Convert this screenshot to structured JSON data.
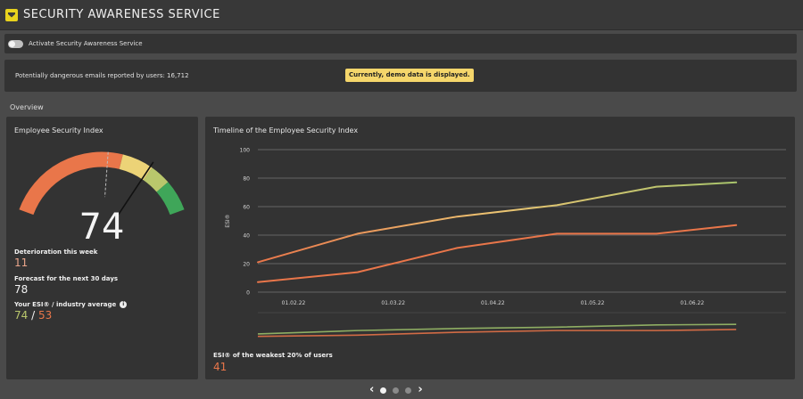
{
  "app": {
    "title": "SECURITY AWARENESS SERVICE",
    "logo_icon": "shield-icon"
  },
  "activate": {
    "label": "Activate Security Awareness Service",
    "enabled": false
  },
  "info": {
    "reported_text": "Potentially dangerous emails reported by users: 16,712",
    "demo_badge": "Currently, demo data is displayed."
  },
  "overview": {
    "label": "Overview"
  },
  "esi_panel": {
    "title": "Employee Security Index",
    "gauge_value": "74",
    "gauge_min": 0,
    "gauge_max": 100,
    "gauge_needle_value": 74,
    "gauge_reference_value": 53,
    "gauge_segments": [
      {
        "from": 0,
        "to": 60,
        "color": "#e9764a"
      },
      {
        "from": 60,
        "to": 75,
        "color": "#ecd377"
      },
      {
        "from": 75,
        "to": 85,
        "color": "#b9c76c"
      },
      {
        "from": 85,
        "to": 100,
        "color": "#3fa659"
      }
    ],
    "deterioration_label": "Deterioration this week",
    "deterioration_value": "11",
    "forecast_label": "Forecast for the next 30 days",
    "forecast_value": "78",
    "average_label": "Your ESI® / industry average",
    "your_esi": "74",
    "separator": "/",
    "industry_avg": "53",
    "colors": {
      "your_esi": "#b9c76c",
      "industry_avg": "#e9764a",
      "deterioration": "#e9a48a"
    }
  },
  "timeline_panel": {
    "title": "Timeline of the Employee Security Index",
    "bottom_label": "ESI® of the weakest 20% of users",
    "bottom_value": "41"
  },
  "chart_data": {
    "type": "line",
    "title": "Timeline of the Employee Security Index",
    "ylabel": "ESI®",
    "ylim": [
      0,
      100
    ],
    "yticks": [
      0,
      20,
      40,
      60,
      80,
      100
    ],
    "x": [
      "01.02.22",
      "01.03.22",
      "01.04.22",
      "01.05.22",
      "01.06.22"
    ],
    "x_values": [
      0,
      1,
      2,
      3,
      4,
      4.8
    ],
    "grid": true,
    "series": [
      {
        "values": [
          21,
          41,
          53,
          61,
          74,
          77
        ],
        "color_stops": [
          "#e9764a",
          "#ecc472",
          "#a8c46c"
        ]
      },
      {
        "values": [
          7,
          14,
          31,
          41,
          41,
          47
        ],
        "color": "#e9764a"
      }
    ]
  },
  "pager": {
    "prev_icon": "chevron-left-icon",
    "next_icon": "chevron-right-icon",
    "pages": 3,
    "active": 0
  }
}
